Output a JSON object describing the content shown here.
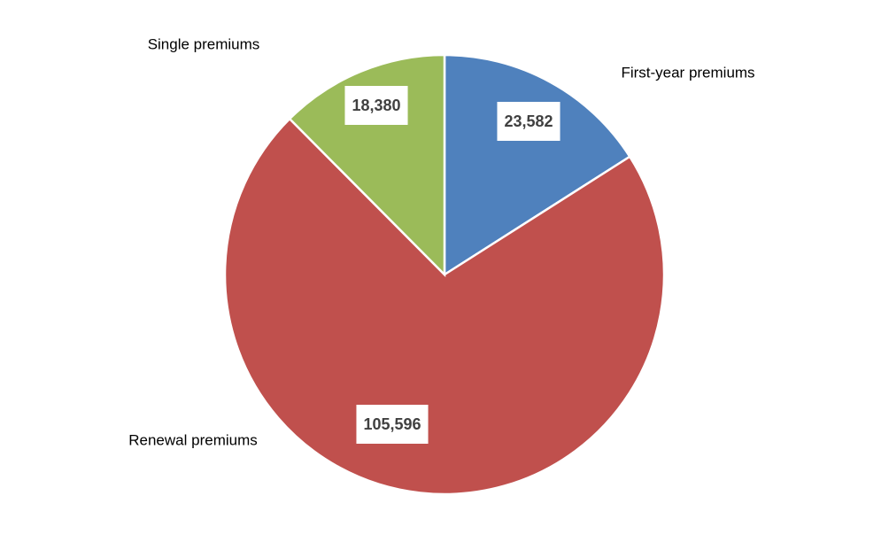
{
  "chart_data": {
    "type": "pie",
    "categories": [
      "First-year premiums",
      "Renewal premiums",
      "Single premiums"
    ],
    "values": [
      23582,
      105596,
      18380
    ],
    "value_labels": [
      "23,582",
      "105,596",
      "18,380"
    ],
    "colors": [
      "#4f81bd",
      "#c0504d",
      "#9bbb59"
    ]
  }
}
